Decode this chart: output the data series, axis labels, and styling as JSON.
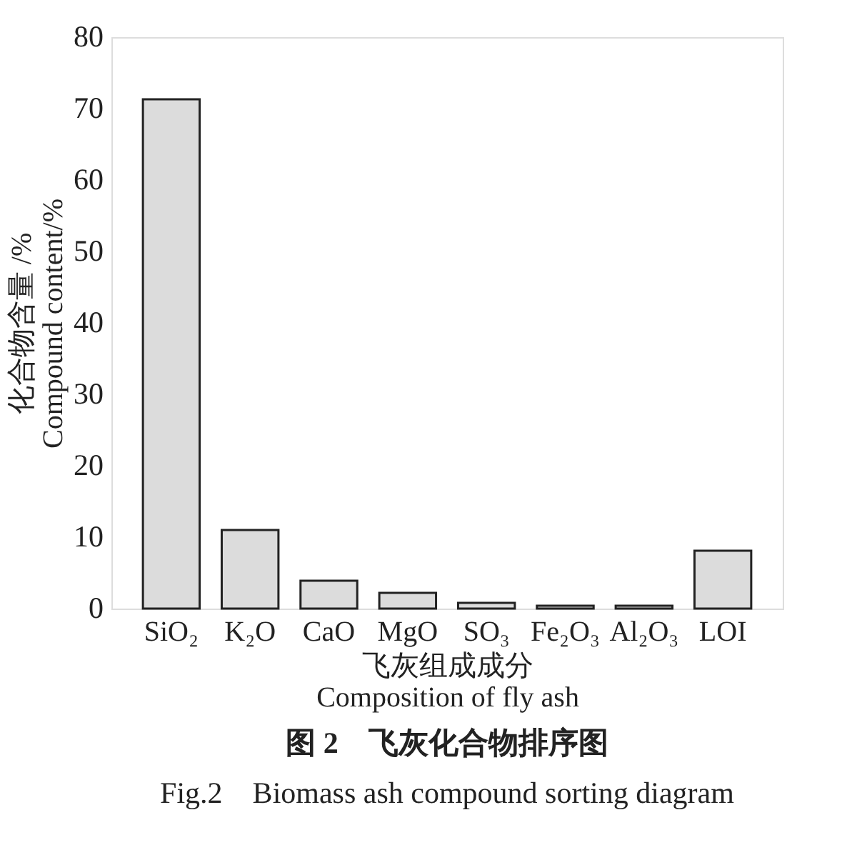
{
  "chart_data": {
    "type": "bar",
    "title": "图 2　飞灰化合物排序图",
    "subtitle": "Fig.2　Biomass ash compound sorting diagram",
    "xlabel": "飞灰组成成分\nComposition of fly ash",
    "ylabel": "化合物含量 /%\nCompound content/%",
    "categories": [
      "SiO₂",
      "K₂O",
      "CaO",
      "MgO",
      "SO₃",
      "Fe₂O₃",
      "Al₂O₃",
      "LOI"
    ],
    "values": [
      71.3,
      11.0,
      3.9,
      2.2,
      0.8,
      0.4,
      0.4,
      8.1
    ],
    "color": "#dcdcdc",
    "ylim": [
      0,
      80
    ],
    "yticks": [
      0,
      10,
      20,
      30,
      40,
      50,
      60,
      70,
      80
    ],
    "grid": false
  }
}
